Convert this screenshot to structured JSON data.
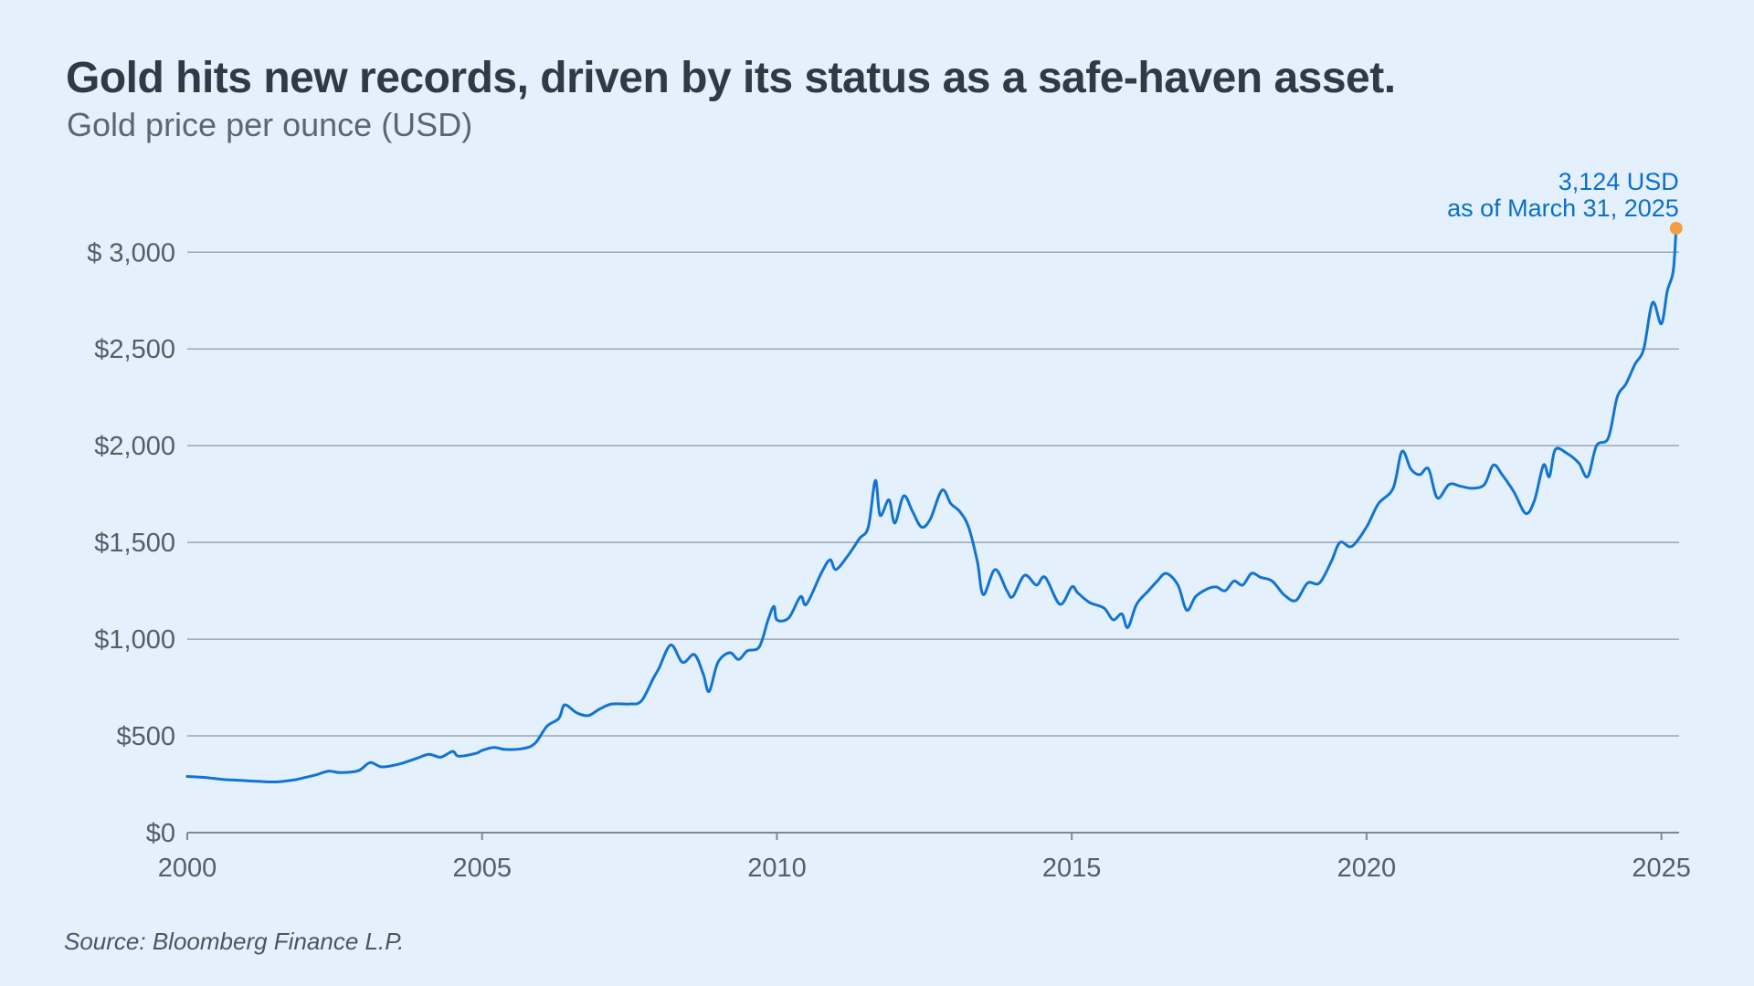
{
  "title": "Gold hits new records, driven by its status as a safe-haven asset.",
  "subtitle": "Gold price per ounce (USD)",
  "source": "Source: Bloomberg Finance L.P.",
  "colors": {
    "background": "#e4f0fb",
    "line": "#1274d1",
    "marker": "#f0a040",
    "annotation": "#0a6fce",
    "grid": "#9aa6b2"
  },
  "chart_data": {
    "type": "line",
    "title": "Gold hits new records, driven by its status as a safe-haven asset.",
    "subtitle": "Gold price per ounce (USD)",
    "xlabel": "",
    "ylabel": "",
    "xlim": [
      2000,
      2025.3
    ],
    "ylim": [
      0,
      3124
    ],
    "grid": true,
    "x_ticks": [
      {
        "value": 2000,
        "label": "2000"
      },
      {
        "value": 2005,
        "label": "2005"
      },
      {
        "value": 2010,
        "label": "2010"
      },
      {
        "value": 2015,
        "label": "2015"
      },
      {
        "value": 2020,
        "label": "2020"
      },
      {
        "value": 2025,
        "label": "2025"
      }
    ],
    "y_ticks": [
      {
        "value": 0,
        "label": "$0"
      },
      {
        "value": 500,
        "label": "$500"
      },
      {
        "value": 1000,
        "label": "$1,000"
      },
      {
        "value": 1500,
        "label": "$1,500"
      },
      {
        "value": 2000,
        "label": "$2,000"
      },
      {
        "value": 2500,
        "label": "$2,500"
      },
      {
        "value": 3000,
        "label": "$ 3,000"
      }
    ],
    "series": [
      {
        "points": [
          [
            2000.0,
            290
          ],
          [
            2000.3,
            285
          ],
          [
            2000.6,
            275
          ],
          [
            2000.9,
            270
          ],
          [
            2001.2,
            265
          ],
          [
            2001.5,
            262
          ],
          [
            2001.8,
            272
          ],
          [
            2002.0,
            285
          ],
          [
            2002.2,
            300
          ],
          [
            2002.4,
            318
          ],
          [
            2002.6,
            310
          ],
          [
            2002.9,
            320
          ],
          [
            2003.1,
            362
          ],
          [
            2003.3,
            340
          ],
          [
            2003.6,
            355
          ],
          [
            2003.9,
            385
          ],
          [
            2004.1,
            405
          ],
          [
            2004.3,
            390
          ],
          [
            2004.5,
            420
          ],
          [
            2004.6,
            395
          ],
          [
            2004.9,
            410
          ],
          [
            2005.0,
            425
          ],
          [
            2005.2,
            440
          ],
          [
            2005.4,
            430
          ],
          [
            2005.7,
            435
          ],
          [
            2005.9,
            462
          ],
          [
            2006.1,
            550
          ],
          [
            2006.3,
            590
          ],
          [
            2006.4,
            660
          ],
          [
            2006.6,
            620
          ],
          [
            2006.8,
            605
          ],
          [
            2007.0,
            640
          ],
          [
            2007.2,
            665
          ],
          [
            2007.5,
            665
          ],
          [
            2007.7,
            680
          ],
          [
            2007.9,
            795
          ],
          [
            2008.0,
            850
          ],
          [
            2008.2,
            970
          ],
          [
            2008.4,
            880
          ],
          [
            2008.6,
            920
          ],
          [
            2008.75,
            820
          ],
          [
            2008.85,
            730
          ],
          [
            2009.0,
            880
          ],
          [
            2009.2,
            930
          ],
          [
            2009.35,
            895
          ],
          [
            2009.5,
            940
          ],
          [
            2009.7,
            960
          ],
          [
            2009.85,
            1100
          ],
          [
            2009.95,
            1170
          ],
          [
            2010.0,
            1100
          ],
          [
            2010.2,
            1110
          ],
          [
            2010.4,
            1220
          ],
          [
            2010.5,
            1180
          ],
          [
            2010.75,
            1340
          ],
          [
            2010.9,
            1410
          ],
          [
            2011.0,
            1360
          ],
          [
            2011.2,
            1430
          ],
          [
            2011.4,
            1520
          ],
          [
            2011.55,
            1580
          ],
          [
            2011.67,
            1820
          ],
          [
            2011.75,
            1640
          ],
          [
            2011.9,
            1720
          ],
          [
            2012.0,
            1600
          ],
          [
            2012.15,
            1740
          ],
          [
            2012.3,
            1660
          ],
          [
            2012.45,
            1580
          ],
          [
            2012.6,
            1620
          ],
          [
            2012.8,
            1770
          ],
          [
            2012.95,
            1700
          ],
          [
            2013.1,
            1660
          ],
          [
            2013.25,
            1580
          ],
          [
            2013.4,
            1400
          ],
          [
            2013.5,
            1230
          ],
          [
            2013.7,
            1360
          ],
          [
            2013.9,
            1250
          ],
          [
            2014.0,
            1220
          ],
          [
            2014.2,
            1330
          ],
          [
            2014.4,
            1280
          ],
          [
            2014.55,
            1320
          ],
          [
            2014.8,
            1180
          ],
          [
            2015.0,
            1270
          ],
          [
            2015.1,
            1240
          ],
          [
            2015.3,
            1190
          ],
          [
            2015.55,
            1160
          ],
          [
            2015.7,
            1100
          ],
          [
            2015.85,
            1130
          ],
          [
            2015.95,
            1060
          ],
          [
            2016.1,
            1180
          ],
          [
            2016.3,
            1250
          ],
          [
            2016.45,
            1300
          ],
          [
            2016.6,
            1340
          ],
          [
            2016.8,
            1280
          ],
          [
            2016.95,
            1150
          ],
          [
            2017.1,
            1220
          ],
          [
            2017.3,
            1260
          ],
          [
            2017.45,
            1270
          ],
          [
            2017.6,
            1250
          ],
          [
            2017.75,
            1300
          ],
          [
            2017.9,
            1280
          ],
          [
            2018.05,
            1340
          ],
          [
            2018.2,
            1320
          ],
          [
            2018.4,
            1300
          ],
          [
            2018.6,
            1230
          ],
          [
            2018.8,
            1200
          ],
          [
            2019.0,
            1290
          ],
          [
            2019.2,
            1290
          ],
          [
            2019.4,
            1400
          ],
          [
            2019.55,
            1500
          ],
          [
            2019.75,
            1480
          ],
          [
            2020.0,
            1580
          ],
          [
            2020.2,
            1700
          ],
          [
            2020.45,
            1780
          ],
          [
            2020.6,
            1970
          ],
          [
            2020.75,
            1880
          ],
          [
            2020.9,
            1850
          ],
          [
            2021.05,
            1880
          ],
          [
            2021.2,
            1730
          ],
          [
            2021.4,
            1800
          ],
          [
            2021.6,
            1790
          ],
          [
            2021.8,
            1780
          ],
          [
            2022.0,
            1800
          ],
          [
            2022.15,
            1900
          ],
          [
            2022.3,
            1850
          ],
          [
            2022.5,
            1760
          ],
          [
            2022.7,
            1650
          ],
          [
            2022.85,
            1720
          ],
          [
            2023.0,
            1900
          ],
          [
            2023.1,
            1840
          ],
          [
            2023.2,
            1980
          ],
          [
            2023.4,
            1960
          ],
          [
            2023.6,
            1910
          ],
          [
            2023.75,
            1840
          ],
          [
            2023.9,
            2000
          ],
          [
            2024.1,
            2040
          ],
          [
            2024.25,
            2250
          ],
          [
            2024.4,
            2320
          ],
          [
            2024.55,
            2420
          ],
          [
            2024.7,
            2500
          ],
          [
            2024.85,
            2740
          ],
          [
            2025.0,
            2630
          ],
          [
            2025.1,
            2800
          ],
          [
            2025.2,
            2900
          ],
          [
            2025.25,
            3124
          ]
        ]
      }
    ],
    "annotation": {
      "line1": "3,124 USD",
      "line2": "as of March 31, 2025",
      "x": 2025.25,
      "y": 3124
    }
  }
}
